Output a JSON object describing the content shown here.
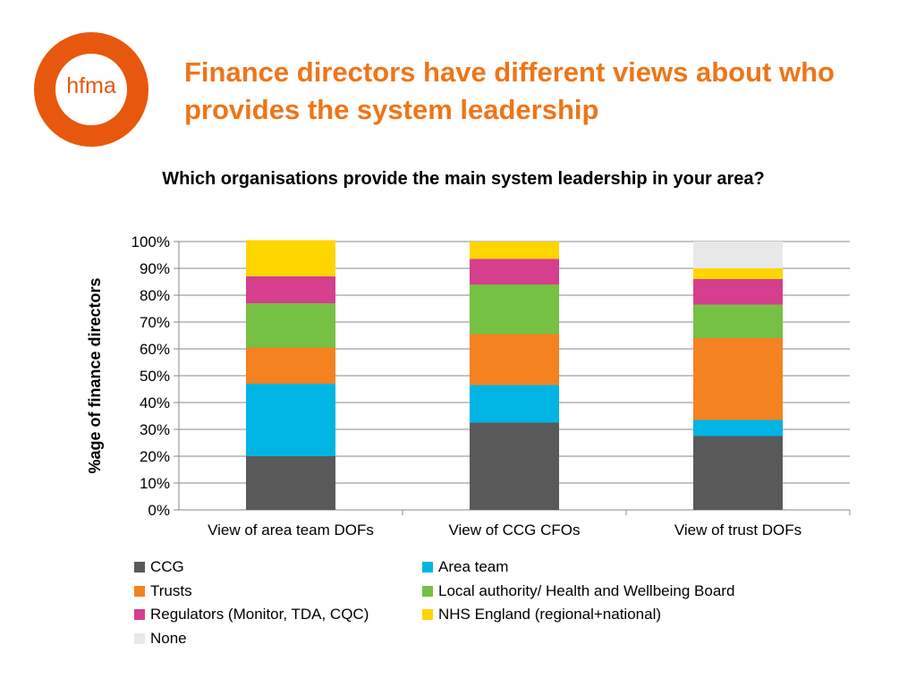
{
  "logo": {
    "text": "hfma",
    "color": "#e8570e"
  },
  "page_title": "Finance directors have different views about who provides the system leadership",
  "chart_data": {
    "type": "bar",
    "stacked": true,
    "percent": true,
    "title": "Which organisations provide the main system leadership in your area?",
    "xlabel": "",
    "ylabel": "%age of finance directors",
    "ylim": [
      0,
      100
    ],
    "yticks": [
      "0%",
      "10%",
      "20%",
      "30%",
      "40%",
      "50%",
      "60%",
      "70%",
      "80%",
      "90%",
      "100%"
    ],
    "categories": [
      "View of area team DOFs",
      "View of CCG CFOs",
      "View of trust DOFs"
    ],
    "series": [
      {
        "name": "CCG",
        "color": "#595959",
        "values": [
          20,
          32.5,
          27.5
        ]
      },
      {
        "name": "Area team",
        "color": "#00b4e4",
        "values": [
          27,
          14,
          6
        ]
      },
      {
        "name": "Trusts",
        "color": "#f58220",
        "values": [
          13.5,
          19,
          30.5
        ]
      },
      {
        "name": "Local authority/ Health and Wellbeing Board",
        "color": "#76c043",
        "values": [
          16.5,
          18.5,
          12.5
        ]
      },
      {
        "name": "Regulators (Monitor, TDA, CQC)",
        "color": "#d63e8e",
        "values": [
          10,
          9.5,
          9.5
        ]
      },
      {
        "name": "NHS England (regional+national)",
        "color": "#ffd500",
        "values": [
          13.5,
          6.5,
          4
        ]
      },
      {
        "name": "None",
        "color": "#e8e8e8",
        "values": [
          0,
          0,
          10
        ]
      }
    ],
    "grid": true,
    "legend_position": "bottom"
  }
}
